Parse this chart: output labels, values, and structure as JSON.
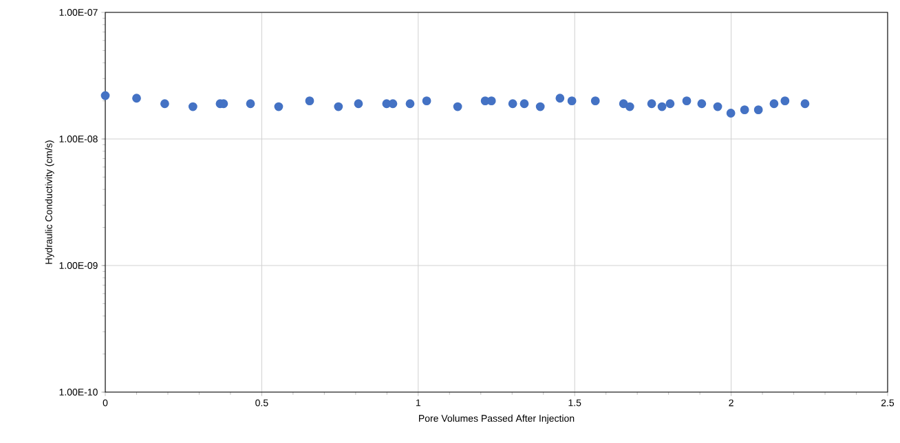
{
  "chart_data": {
    "type": "scatter",
    "xlabel": "Pore Volumes Passed After Injection",
    "ylabel": "Hydraulic Conductivity (cm/s)",
    "x": [
      0,
      0.1,
      0.19,
      0.28,
      0.367,
      0.378,
      0.464,
      0.554,
      0.653,
      0.745,
      0.809,
      0.899,
      0.919,
      0.974,
      1.027,
      1.126,
      1.214,
      1.234,
      1.302,
      1.339,
      1.39,
      1.453,
      1.491,
      1.566,
      1.656,
      1.676,
      1.746,
      1.779,
      1.805,
      1.858,
      1.906,
      1.957,
      1.999,
      2.043,
      2.087,
      2.137,
      2.172,
      2.236
    ],
    "series": [
      {
        "color": "#4472c4",
        "values": [
          2.2e-08,
          2.1e-08,
          1.9e-08,
          1.8e-08,
          1.9e-08,
          1.9e-08,
          1.9e-08,
          1.8e-08,
          2e-08,
          1.8e-08,
          1.9e-08,
          1.9e-08,
          1.9e-08,
          1.9e-08,
          2e-08,
          1.8e-08,
          2e-08,
          2e-08,
          1.9e-08,
          1.9e-08,
          1.8e-08,
          2.1e-08,
          2e-08,
          2e-08,
          1.9e-08,
          1.8e-08,
          1.9e-08,
          1.8e-08,
          1.9e-08,
          2e-08,
          1.9e-08,
          1.8e-08,
          1.6e-08,
          1.7e-08,
          1.7e-08,
          1.9e-08,
          2e-08,
          1.9e-08
        ]
      }
    ],
    "xlim": [
      0,
      2.5
    ],
    "xticks": [
      0,
      0.5,
      1,
      1.5,
      2,
      2.5
    ],
    "ylim": [
      1e-10,
      1e-07
    ],
    "yticks": [
      {
        "value": 1e-10,
        "label": "1.00E-10"
      },
      {
        "value": 1e-09,
        "label": "1.00E-09"
      },
      {
        "value": 1e-08,
        "label": "1.00E-08"
      },
      {
        "value": 1e-07,
        "label": "1.00E-07"
      }
    ],
    "log": "y",
    "grid": true,
    "marker": "circle"
  }
}
